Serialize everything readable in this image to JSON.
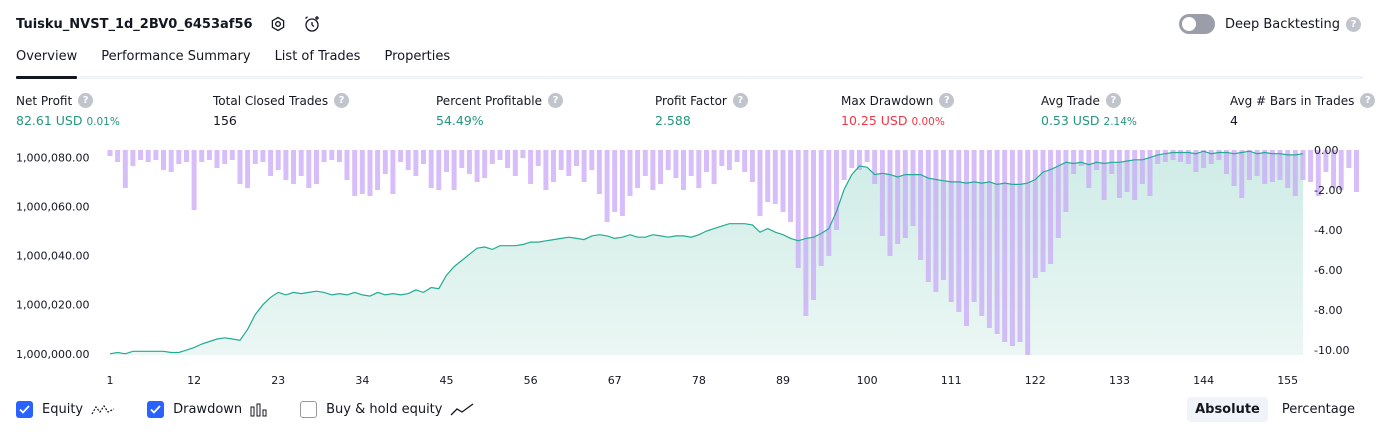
{
  "header": {
    "title": "Tuisku_NVST_1d_2BV0_6453af56",
    "deep_backtesting_label": "Deep Backtesting",
    "deep_backtesting_enabled": false,
    "help_glyph": "?"
  },
  "tabs": [
    {
      "label": "Overview",
      "active": true
    },
    {
      "label": "Performance Summary",
      "active": false
    },
    {
      "label": "List of Trades",
      "active": false
    },
    {
      "label": "Properties",
      "active": false
    }
  ],
  "metrics": {
    "net_profit": {
      "label": "Net Profit",
      "value": "82.61 USD",
      "pct": "0.01%"
    },
    "total_closed_trades": {
      "label": "Total Closed Trades",
      "value": "156"
    },
    "percent_profitable": {
      "label": "Percent Profitable",
      "value": "54.49%"
    },
    "profit_factor": {
      "label": "Profit Factor",
      "value": "2.588"
    },
    "max_drawdown": {
      "label": "Max Drawdown",
      "value": "10.25 USD",
      "pct": "0.00%"
    },
    "avg_trade": {
      "label": "Avg Trade",
      "value": "0.53 USD",
      "pct": "2.14%"
    },
    "avg_bars": {
      "label": "Avg # Bars in Trades",
      "value": "4"
    }
  },
  "colors": {
    "profit": "#22977e",
    "loss": "#f23645",
    "equity_line": "#22ab94",
    "equity_fill": "#cfece6",
    "drawdown": "#c9a8f7",
    "checkbox": "#2962ff"
  },
  "legend": {
    "equity_label": "Equity",
    "equity_checked": true,
    "drawdown_label": "Drawdown",
    "drawdown_checked": true,
    "buyhold_label": "Buy & hold equity",
    "buyhold_checked": false
  },
  "modes": {
    "absolute": "Absolute",
    "percentage": "Percentage",
    "active": "absolute"
  },
  "chart_data": {
    "type": "area",
    "x_ticks": [
      1,
      12,
      23,
      34,
      45,
      56,
      67,
      78,
      89,
      100,
      111,
      122,
      133,
      144,
      155
    ],
    "y_left_ticks": [
      1000000,
      1000020,
      1000040,
      1000060,
      1000080
    ],
    "y_left_tick_labels": [
      "1,000,000.00",
      "1,000,020.00",
      "1,000,040.00",
      "1,000,060.00",
      "1,000,080.00"
    ],
    "y_left_range": [
      999999.5,
      1000083
    ],
    "y_right_ticks": [
      0,
      -2,
      -4,
      -6,
      -8,
      -10
    ],
    "y_right_tick_labels": [
      "0.00",
      "-2.00",
      "-4.00",
      "-6.00",
      "-8.00",
      "-10.00"
    ],
    "y_right_range": [
      -10.25,
      0
    ],
    "x_range": [
      1,
      157
    ],
    "series": [
      {
        "name": "Equity",
        "values": [
          1000000.0,
          1000000.5,
          1000000.0,
          1000001.0,
          1000001.0,
          1000001.0,
          1000001.0,
          1000001.0,
          1000000.5,
          1000000.5,
          1000001.5,
          1000002.5,
          1000004.0,
          1000005.0,
          1000006.0,
          1000006.5,
          1000006.0,
          1000005.5,
          1000010.0,
          1000016.0,
          1000020.0,
          1000023.0,
          1000025.0,
          1000024.0,
          1000025.0,
          1000024.5,
          1000025.0,
          1000025.5,
          1000025.0,
          1000024.0,
          1000024.5,
          1000024.0,
          1000025.0,
          1000024.0,
          1000023.5,
          1000025.0,
          1000024.0,
          1000024.5,
          1000024.0,
          1000024.5,
          1000026.0,
          1000025.0,
          1000027.0,
          1000026.5,
          1000032.0,
          1000035.5,
          1000038.0,
          1000040.5,
          1000043.0,
          1000043.5,
          1000042.5,
          1000044.0,
          1000044.0,
          1000044.0,
          1000044.5,
          1000045.5,
          1000045.5,
          1000046.0,
          1000046.5,
          1000047.0,
          1000047.5,
          1000047.0,
          1000046.5,
          1000048.0,
          1000048.5,
          1000048.0,
          1000047.0,
          1000047.5,
          1000048.5,
          1000047.5,
          1000047.5,
          1000048.5,
          1000048.0,
          1000047.5,
          1000048.0,
          1000048.0,
          1000047.5,
          1000048.5,
          1000050.0,
          1000051.0,
          1000052.0,
          1000053.0,
          1000053.0,
          1000053.0,
          1000052.5,
          1000049.5,
          1000051.0,
          1000049.5,
          1000048.5,
          1000047.0,
          1000046.0,
          1000047.0,
          1000047.5,
          1000049.0,
          1000051.0,
          1000058.0,
          1000067.0,
          1000073.0,
          1000076.5,
          1000076.0,
          1000073.0,
          1000073.5,
          1000073.0,
          1000072.0,
          1000073.0,
          1000073.0,
          1000073.0,
          1000071.5,
          1000071.0,
          1000070.5,
          1000070.0,
          1000070.0,
          1000069.5,
          1000070.0,
          1000069.5,
          1000070.0,
          1000069.0,
          1000069.5,
          1000069.0,
          1000069.0,
          1000069.5,
          1000071.0,
          1000074.0,
          1000075.0,
          1000076.5,
          1000078.0,
          1000077.5,
          1000078.0,
          1000077.0,
          1000078.0,
          1000077.5,
          1000078.0,
          1000078.0,
          1000078.5,
          1000079.0,
          1000079.0,
          1000080.0,
          1000081.0,
          1000081.5,
          1000082.0,
          1000082.0,
          1000082.0,
          1000081.5,
          1000082.5,
          1000081.5,
          1000082.0,
          1000082.0,
          1000081.5,
          1000082.0,
          1000082.5,
          1000081.5,
          1000082.0,
          1000081.5,
          1000081.5,
          1000081.0,
          1000081.0,
          1000081.5
        ]
      },
      {
        "name": "Drawdown",
        "values": [
          -0.3,
          -0.6,
          -1.9,
          -0.8,
          -0.5,
          -0.6,
          -0.5,
          -1.0,
          -1.1,
          -0.7,
          -0.6,
          -3.0,
          -0.6,
          -0.5,
          -0.9,
          -0.7,
          -0.5,
          -1.7,
          -1.9,
          -0.7,
          -0.6,
          -1.3,
          -1.0,
          -1.5,
          -1.7,
          -1.3,
          -1.9,
          -1.7,
          -0.6,
          -0.5,
          -0.6,
          -1.5,
          -2.3,
          -2.2,
          -2.3,
          -2.0,
          -1.2,
          -2.2,
          -0.6,
          -1.0,
          -1.3,
          -0.7,
          -1.9,
          -2.0,
          -1.1,
          -2.0,
          -0.9,
          -1.2,
          -1.6,
          -1.4,
          -0.7,
          -0.5,
          -0.9,
          -1.3,
          -0.4,
          -1.7,
          -0.8,
          -2.0,
          -1.6,
          -1.0,
          -1.3,
          -0.8,
          -1.6,
          -1.0,
          -2.2,
          -3.6,
          -3.1,
          -3.3,
          -2.3,
          -1.9,
          -1.3,
          -2.0,
          -1.7,
          -1.0,
          -1.4,
          -2.0,
          -1.3,
          -1.9,
          -1.1,
          -1.7,
          -0.8,
          -1.0,
          -0.6,
          -1.1,
          -1.6,
          -3.3,
          -2.6,
          -2.7,
          -3.1,
          -3.6,
          -5.9,
          -8.3,
          -7.5,
          -5.8,
          -5.3,
          -4.0,
          -1.5,
          -0.9,
          -1.0,
          -0.6,
          -1.7,
          -4.3,
          -5.3,
          -4.7,
          -4.4,
          -3.8,
          -5.5,
          -6.6,
          -7.1,
          -6.5,
          -7.6,
          -8.1,
          -8.8,
          -7.6,
          -8.3,
          -8.9,
          -9.2,
          -9.6,
          -9.8,
          -9.6,
          -10.25,
          -6.4,
          -6.1,
          -5.7,
          -4.4,
          -3.1,
          -1.2,
          -0.8,
          -1.9,
          -1.0,
          -2.5,
          -1.2,
          -2.4,
          -2.1,
          -2.5,
          -1.7,
          -2.3,
          -0.7,
          -0.6,
          -0.5,
          -0.6,
          -0.7,
          -1.1,
          -0.9,
          -0.7,
          -0.5,
          -1.2,
          -1.8,
          -2.4,
          -1.5,
          -1.3,
          -1.7,
          -1.6,
          -1.5,
          -1.9,
          -2.3,
          -1.5,
          -1.6,
          -2.3,
          -1.1,
          -1.9,
          -2.0,
          -0.9,
          -2.1
        ]
      }
    ]
  }
}
